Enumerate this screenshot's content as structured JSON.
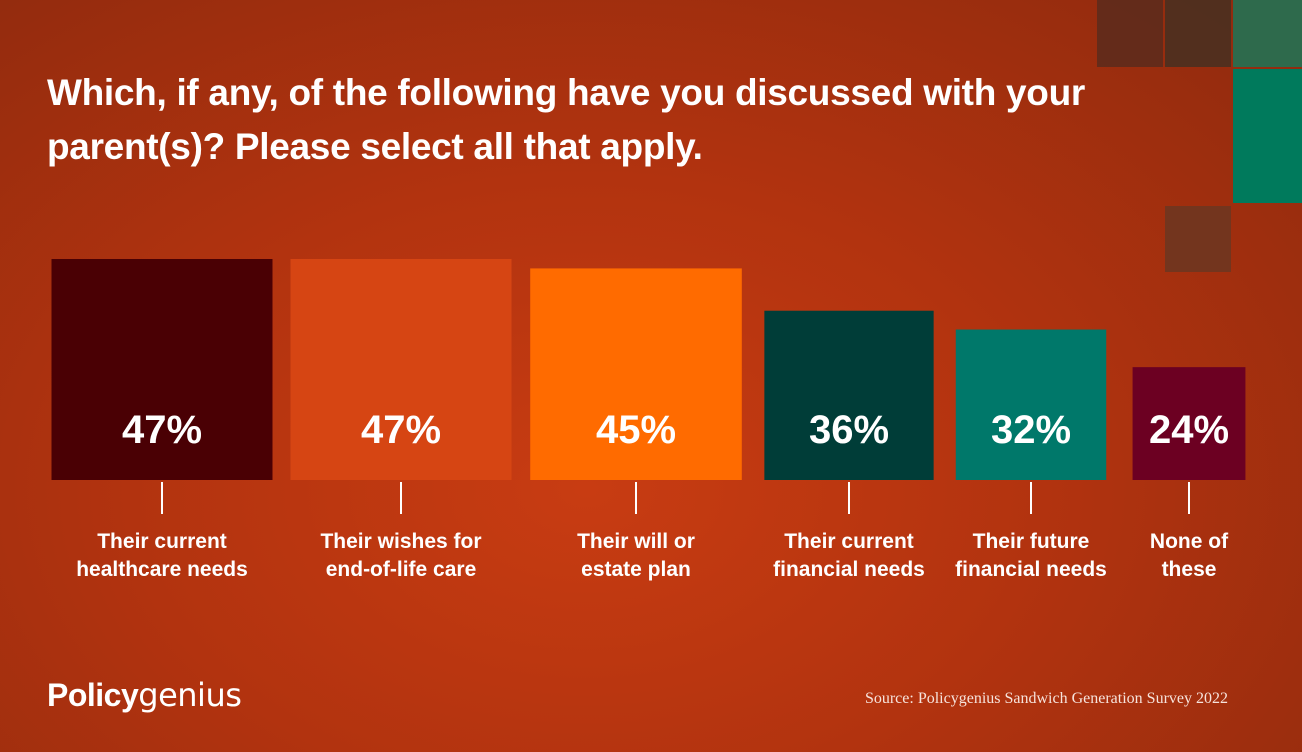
{
  "title_lines": [
    "Which, if any, of the following have you discussed with your",
    "parent(s)? Please select all that apply."
  ],
  "chart_data": {
    "type": "bar",
    "categories": [
      [
        "Their current",
        "healthcare needs"
      ],
      [
        "Their wishes for",
        "end-of-life care"
      ],
      [
        "Their will or",
        "estate plan"
      ],
      [
        "Their current",
        "financial needs"
      ],
      [
        "Their future",
        "financial needs"
      ],
      [
        "None of",
        "these"
      ]
    ],
    "values": [
      47,
      47,
      45,
      36,
      32,
      24
    ],
    "value_labels": [
      "47%",
      "47%",
      "45%",
      "36%",
      "32%",
      "24%"
    ],
    "colors": [
      "#4a0004",
      "#d64513",
      "#ff6b00",
      "#003d38",
      "#00786a",
      "#6c0022"
    ]
  },
  "brand": {
    "part1": "Policy",
    "part2": "genius"
  },
  "source": "Source: Policygenius Sandwich Generation Survey 2022",
  "decoration_colors": [
    "#5a2c1c",
    "#4a3020",
    "#2e6a4c",
    "#007a5c",
    "#6e3620"
  ]
}
